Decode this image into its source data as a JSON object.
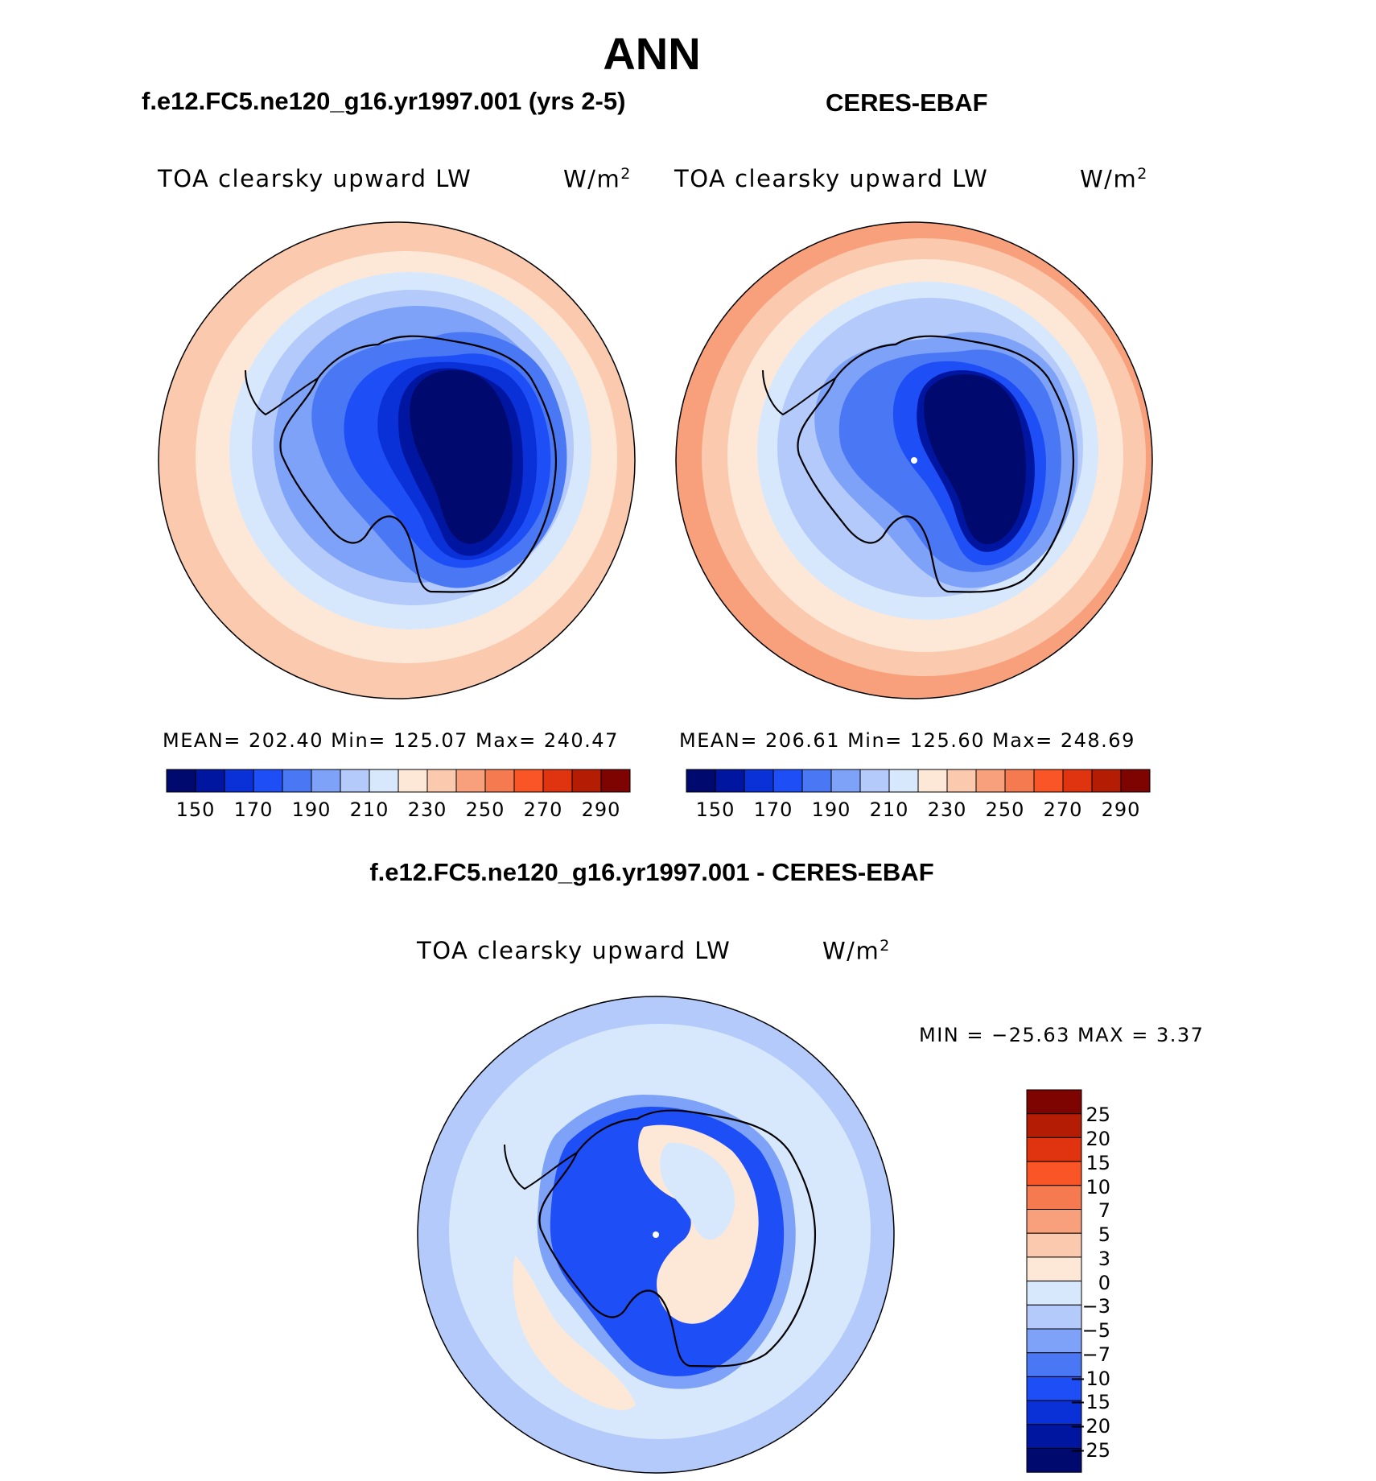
{
  "title": "ANN",
  "panels": [
    {
      "subtitle": "f.e12.FC5.ne120_g16.yr1997.001 (yrs 2-5)",
      "variable": "TOA clearsky upward LW",
      "units": "W/m",
      "units_sup": "2",
      "stats": "MEAN= 202.40   Min= 125.07   Max= 240.47",
      "colorbar_labels": [
        "150",
        "170",
        "190",
        "210",
        "230",
        "250",
        "270",
        "290"
      ]
    },
    {
      "subtitle": "CERES-EBAF",
      "variable": "TOA clearsky upward LW",
      "units": "W/m",
      "units_sup": "2",
      "stats": "MEAN= 206.61   Min= 125.60   Max= 248.69",
      "colorbar_labels": [
        "150",
        "170",
        "190",
        "210",
        "230",
        "250",
        "270",
        "290"
      ]
    }
  ],
  "difference": {
    "subtitle": "f.e12.FC5.ne120_g16.yr1997.001 - CERES-EBAF",
    "variable": "TOA clearsky upward LW",
    "units": "W/m",
    "units_sup": "2",
    "minmax": "MIN = −25.63 MAX =     3.37",
    "colorbar_labels": [
      "25",
      "20",
      "15",
      "10",
      "7",
      "5",
      "3",
      "0",
      "−3",
      "−5",
      "−7",
      "−10",
      "−15",
      "−20",
      "−25"
    ]
  },
  "palettes": {
    "absolute": [
      "#000a6e",
      "#0016a0",
      "#0a30d8",
      "#1e4ef5",
      "#4a78f5",
      "#7ea2f7",
      "#b4cafa",
      "#d8e8fc",
      "#fde8d8",
      "#fbc9ae",
      "#f8a07c",
      "#f57a50",
      "#fa5526",
      "#e03310",
      "#b41d04",
      "#7e0402"
    ],
    "difference": [
      "#7e0402",
      "#b41d04",
      "#e03310",
      "#fa5526",
      "#f57a50",
      "#f8a07c",
      "#fbc9ae",
      "#fde8d8",
      "#d8e8fc",
      "#b4cafa",
      "#7ea2f7",
      "#4a78f5",
      "#1e4ef5",
      "#0a30d8",
      "#0016a0",
      "#000a6e"
    ]
  }
}
